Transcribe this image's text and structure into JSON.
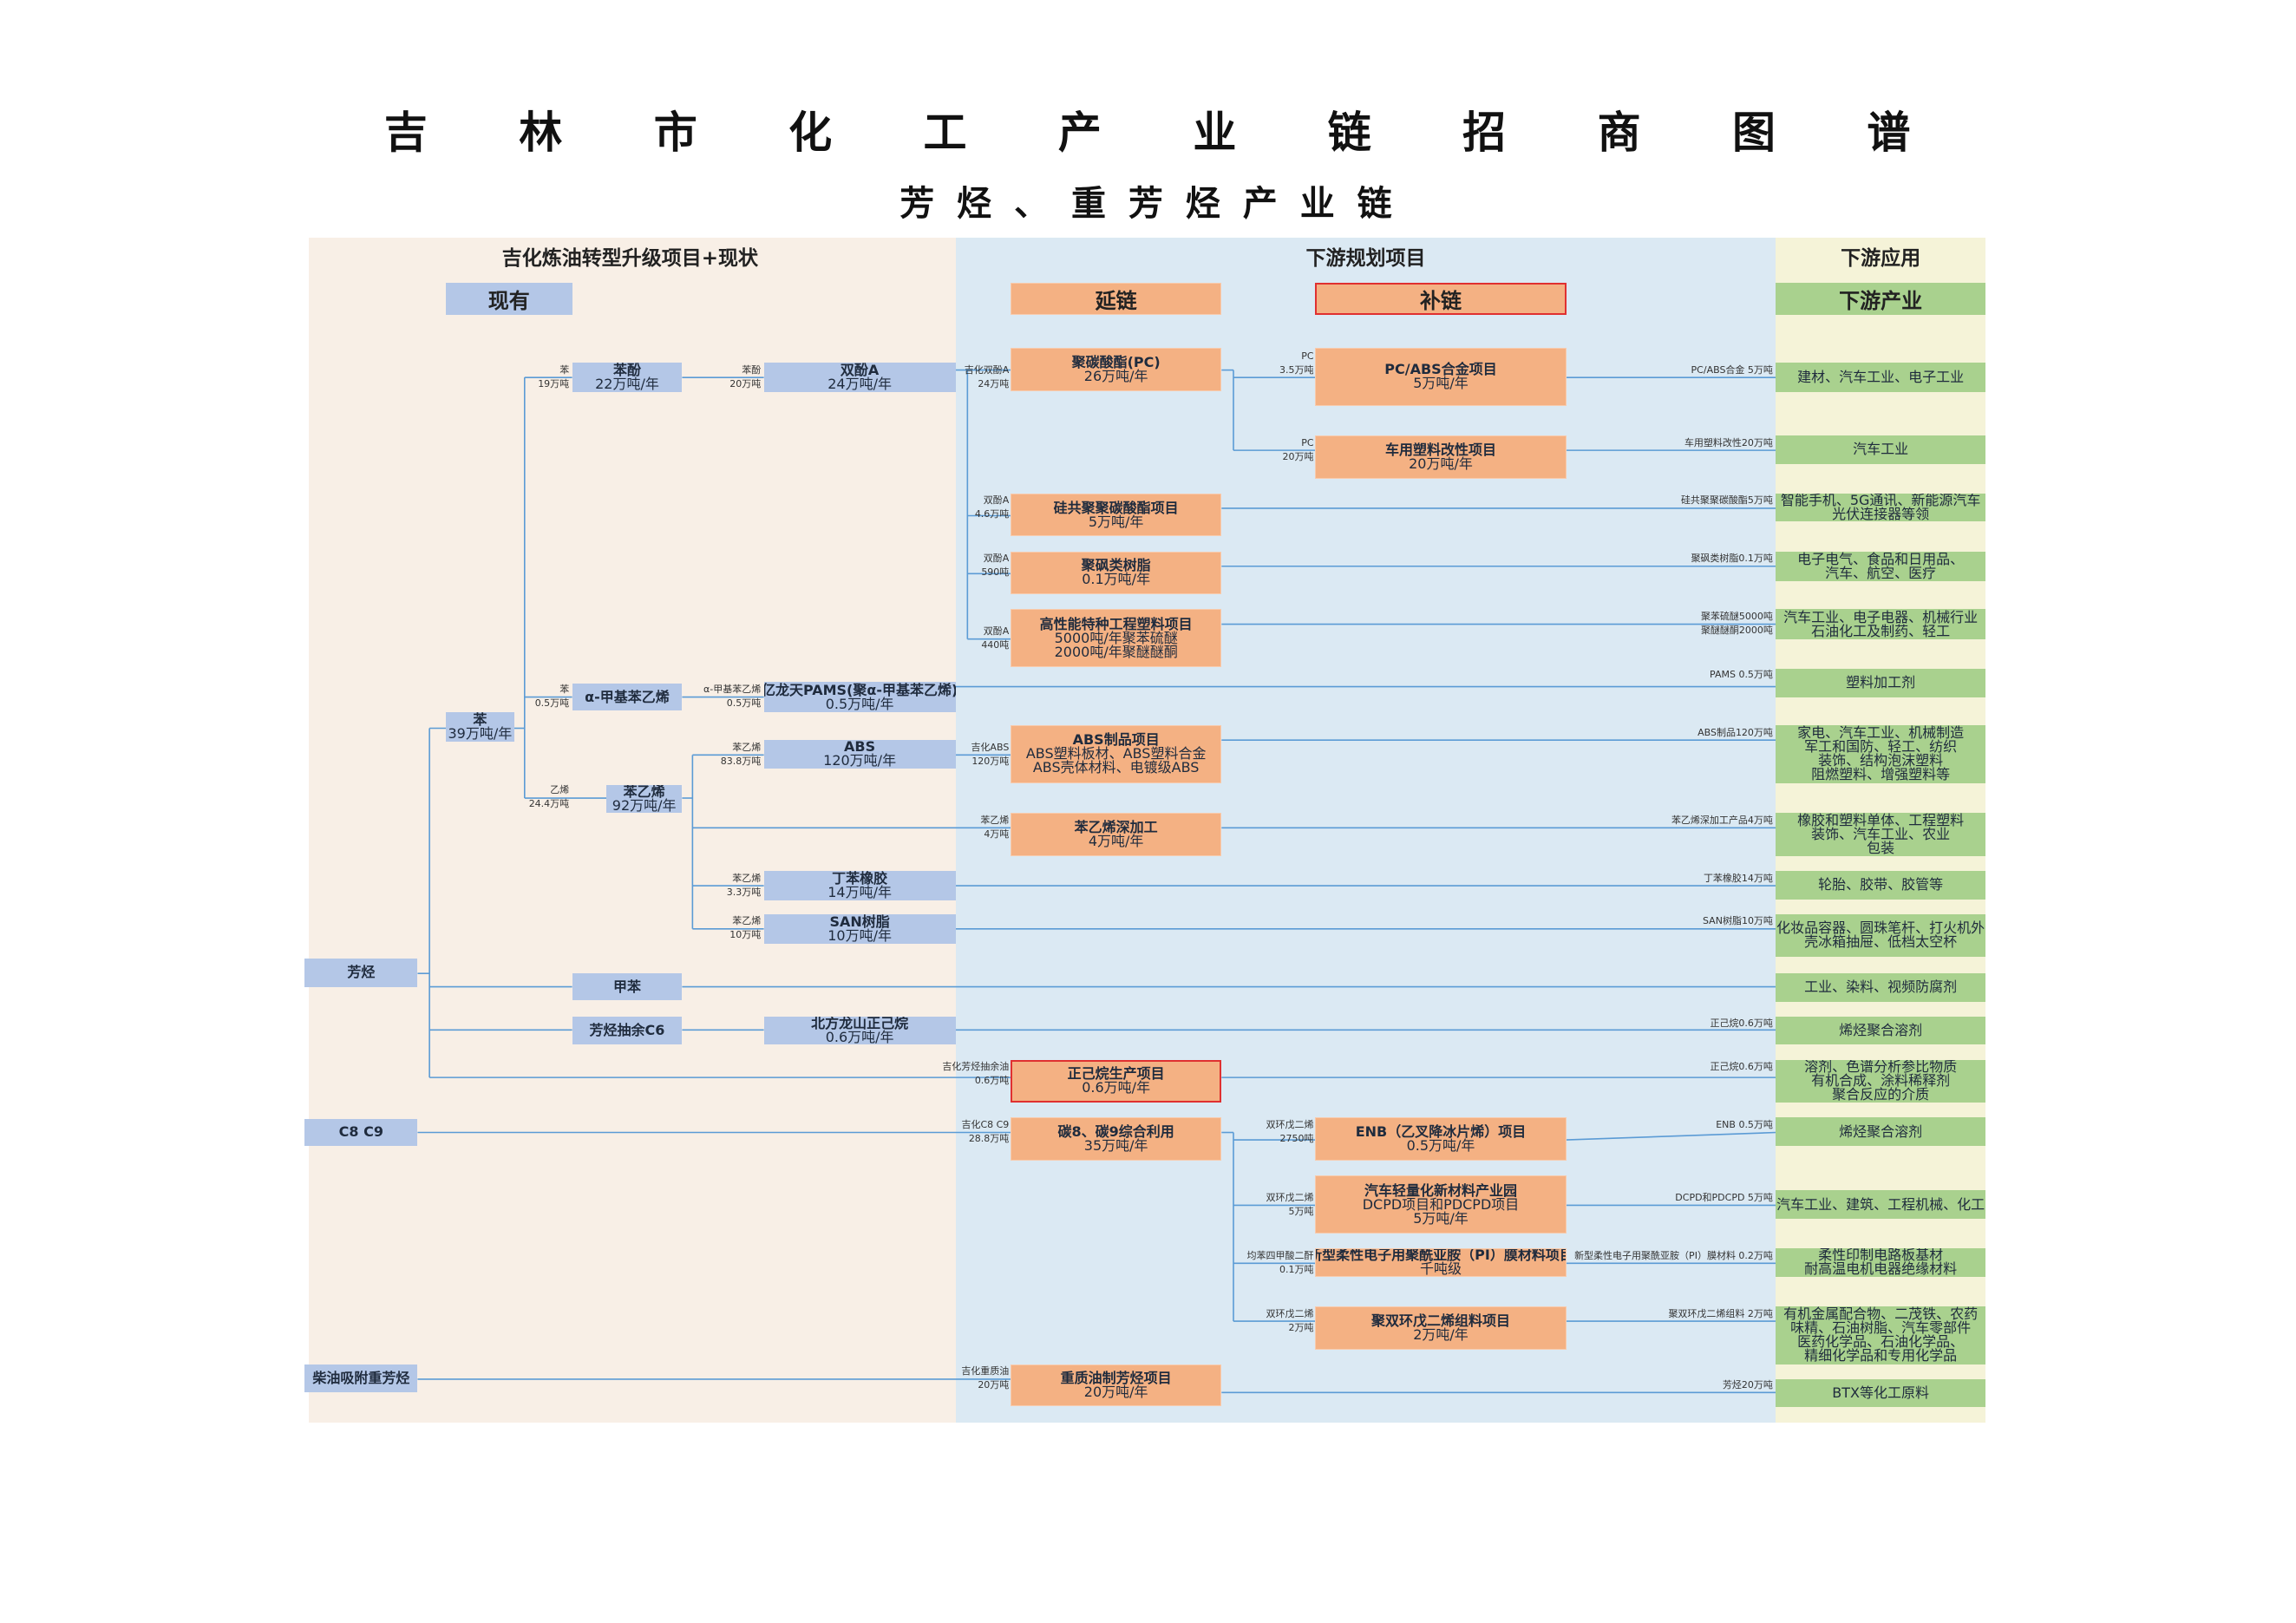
{
  "header": {
    "title": "吉 林 市 化 工 产 业 链 招 商 图 谱",
    "subtitle": "芳 烃 、 重 芳 烃 产 业 链"
  },
  "sections": [
    "吉化炼油转型升级项目+现状",
    "下游规划项目",
    "下游应用"
  ],
  "subheaders": [
    "现有",
    "延链",
    "补链",
    "下游产业"
  ],
  "nodes": [
    {
      "lines": [
        "芳烃"
      ]
    },
    {
      "lines": [
        "C8 C9"
      ]
    },
    {
      "lines": [
        "柴油吸附重芳烃"
      ]
    },
    {
      "lines": [
        "苯",
        "39万吨/年"
      ]
    },
    {
      "lines": [
        "苯酚",
        "22万吨/年"
      ]
    },
    {
      "lines": [
        "α-甲基苯乙烯"
      ]
    },
    {
      "lines": [
        "苯乙烯",
        "92万吨/年"
      ]
    },
    {
      "lines": [
        "甲苯"
      ]
    },
    {
      "lines": [
        "芳烃抽余C6"
      ]
    },
    {
      "lines": [
        "双酚A",
        "24万吨/年"
      ]
    },
    {
      "lines": [
        "亿龙天PAMS(聚α-甲基苯乙烯)",
        "0.5万吨/年"
      ]
    },
    {
      "lines": [
        "ABS",
        "120万吨/年"
      ]
    },
    {
      "lines": [
        "丁苯橡胶",
        "14万吨/年"
      ]
    },
    {
      "lines": [
        "SAN树脂",
        "10万吨/年"
      ]
    },
    {
      "lines": [
        "北方龙山正己烷",
        "0.6万吨/年"
      ]
    },
    {
      "lines": [
        "聚碳酸酯(PC)",
        "26万吨/年"
      ]
    },
    {
      "lines": [
        "硅共聚聚碳酸酯项目",
        "5万吨/年"
      ]
    },
    {
      "lines": [
        "聚砜类树脂",
        "0.1万吨/年"
      ]
    },
    {
      "lines": [
        "高性能特种工程塑料项目",
        "5000吨/年聚苯硫醚",
        "2000吨/年聚醚醚酮"
      ]
    },
    {
      "lines": [
        "ABS制品项目",
        "ABS塑料板材、ABS塑料合金",
        "ABS壳体材料、电镀级ABS"
      ]
    },
    {
      "lines": [
        "苯乙烯深加工",
        "4万吨/年"
      ]
    },
    {
      "lines": [
        "正己烷生产项目",
        "0.6万吨/年"
      ]
    },
    {
      "lines": [
        "碳8、碳9综合利用",
        "35万吨/年"
      ]
    },
    {
      "lines": [
        "重质油制芳烃项目",
        "20万吨/年"
      ]
    },
    {
      "lines": [
        "PC/ABS合金项目",
        "5万吨/年"
      ]
    },
    {
      "lines": [
        "车用塑料改性项目",
        "20万吨/年"
      ]
    },
    {
      "lines": [
        "ENB（乙叉降冰片烯）项目",
        "0.5万吨/年"
      ]
    },
    {
      "lines": [
        "汽车轻量化新材料产业园",
        "DCPD项目和PDCPD项目",
        "5万吨/年"
      ]
    },
    {
      "lines": [
        "新型柔性电子用聚酰亚胺（PI）膜材料项目",
        "千吨级"
      ]
    },
    {
      "lines": [
        "聚双环戊二烯组料项目",
        "2万吨/年"
      ]
    },
    {
      "lines": [
        "建材、汽车工业、电子工业"
      ]
    },
    {
      "lines": [
        "汽车工业"
      ]
    },
    {
      "lines": [
        "智能手机、5G通讯、新能源汽车",
        "光伏连接器等领"
      ]
    },
    {
      "lines": [
        "电子电气、食品和日用品、",
        "汽车、航空、医疗"
      ]
    },
    {
      "lines": [
        "汽车工业、电子电器、机械行业",
        "石油化工及制药、轻工"
      ]
    },
    {
      "lines": [
        "塑料加工剂"
      ]
    },
    {
      "lines": [
        "家电、汽车工业、机械制造",
        "军工和国防、轻工、纺织",
        "装饰、结构泡沫塑料",
        "阻燃塑料、增强塑料等"
      ]
    },
    {
      "lines": [
        "橡胶和塑料单体、工程塑料",
        "装饰、汽车工业、农业",
        "包装"
      ]
    },
    {
      "lines": [
        "轮胎、胶带、胶管等"
      ]
    },
    {
      "lines": [
        "化妆品容器、圆珠笔杆、打火机外",
        "壳冰箱抽屉、低档太空杯"
      ]
    },
    {
      "lines": [
        "工业、染料、视频防腐剂"
      ]
    },
    {
      "lines": [
        "烯烃聚合溶剂"
      ]
    },
    {
      "lines": [
        "溶剂、色谱分析参比物质",
        "有机合成、涂料稀释剂",
        "聚合反应的介质"
      ]
    },
    {
      "lines": [
        "烯烃聚合溶剂"
      ]
    },
    {
      "lines": [
        "汽车工业、建筑、工程机械、化工"
      ]
    },
    {
      "lines": [
        "柔性印制电路板基材",
        "耐高温电机电器绝缘材料"
      ]
    },
    {
      "lines": [
        "有机金属配合物、二茂铁、农药",
        "味精、石油树脂、汽车零部件",
        "医药化学品、石油化学品、",
        "精细化学品和专用化学品"
      ]
    },
    {
      "lines": [
        "BTX等化工原料"
      ]
    }
  ],
  "edge_labels": [
    {
      "lines": [
        "苯",
        "19万吨"
      ]
    },
    {
      "lines": [
        "苯酚",
        "20万吨"
      ]
    },
    {
      "lines": [
        "吉化双酚A",
        "24万吨"
      ]
    },
    {
      "lines": [
        "PC",
        "3.5万吨"
      ]
    },
    {
      "lines": [
        "PC",
        "20万吨"
      ]
    },
    {
      "lines": [
        "PC/ABS合金 5万吨"
      ]
    },
    {
      "lines": [
        "车用塑料改性20万吨"
      ]
    },
    {
      "lines": [
        "双酚A",
        "4.6万吨"
      ]
    },
    {
      "lines": [
        "硅共聚聚碳酸酯5万吨"
      ]
    },
    {
      "lines": [
        "双酚A",
        "590吨"
      ]
    },
    {
      "lines": [
        "聚砜类树脂0.1万吨"
      ]
    },
    {
      "lines": [
        "双酚A",
        "440吨"
      ]
    },
    {
      "lines": [
        "聚苯硫醚5000吨",
        "聚醚醚酮2000吨"
      ]
    },
    {
      "lines": [
        "苯",
        "0.5万吨"
      ]
    },
    {
      "lines": [
        "α-甲基苯乙烯",
        "0.5万吨"
      ]
    },
    {
      "lines": [
        "PAMS  0.5万吨"
      ]
    },
    {
      "lines": [
        "乙烯",
        "24.4万吨"
      ]
    },
    {
      "lines": [
        "苯乙烯",
        "83.8万吨"
      ]
    },
    {
      "lines": [
        "吉化ABS",
        "120万吨"
      ]
    },
    {
      "lines": [
        "ABS制品120万吨"
      ]
    },
    {
      "lines": [
        "苯乙烯",
        "4万吨"
      ]
    },
    {
      "lines": [
        "苯乙烯深加工产品4万吨"
      ]
    },
    {
      "lines": [
        "苯乙烯",
        "3.3万吨"
      ]
    },
    {
      "lines": [
        "丁苯橡胶14万吨"
      ]
    },
    {
      "lines": [
        "苯乙烯",
        "10万吨"
      ]
    },
    {
      "lines": [
        "SAN树脂10万吨"
      ]
    },
    {
      "lines": [
        "正己烷0.6万吨"
      ]
    },
    {
      "lines": [
        "吉化芳烃抽余油",
        "0.6万吨"
      ]
    },
    {
      "lines": [
        "正己烷0.6万吨"
      ]
    },
    {
      "lines": [
        "吉化C8 C9",
        "28.8万吨"
      ]
    },
    {
      "lines": [
        "双环戊二烯",
        "2750吨"
      ]
    },
    {
      "lines": [
        "ENB 0.5万吨"
      ]
    },
    {
      "lines": [
        "双环戊二烯",
        "5万吨"
      ]
    },
    {
      "lines": [
        "DCPD和PDCPD 5万吨"
      ]
    },
    {
      "lines": [
        "均苯四甲酸二酐",
        "0.1万吨"
      ]
    },
    {
      "lines": [
        "新型柔性电子用聚酰亚胺（PI）膜材料  0.2万吨"
      ]
    },
    {
      "lines": [
        "双环戊二烯",
        "2万吨"
      ]
    },
    {
      "lines": [
        "聚双环戊二烯组料 2万吨"
      ]
    },
    {
      "lines": [
        "吉化重质油",
        "20万吨"
      ]
    },
    {
      "lines": [
        "芳烃20万吨"
      ]
    }
  ]
}
